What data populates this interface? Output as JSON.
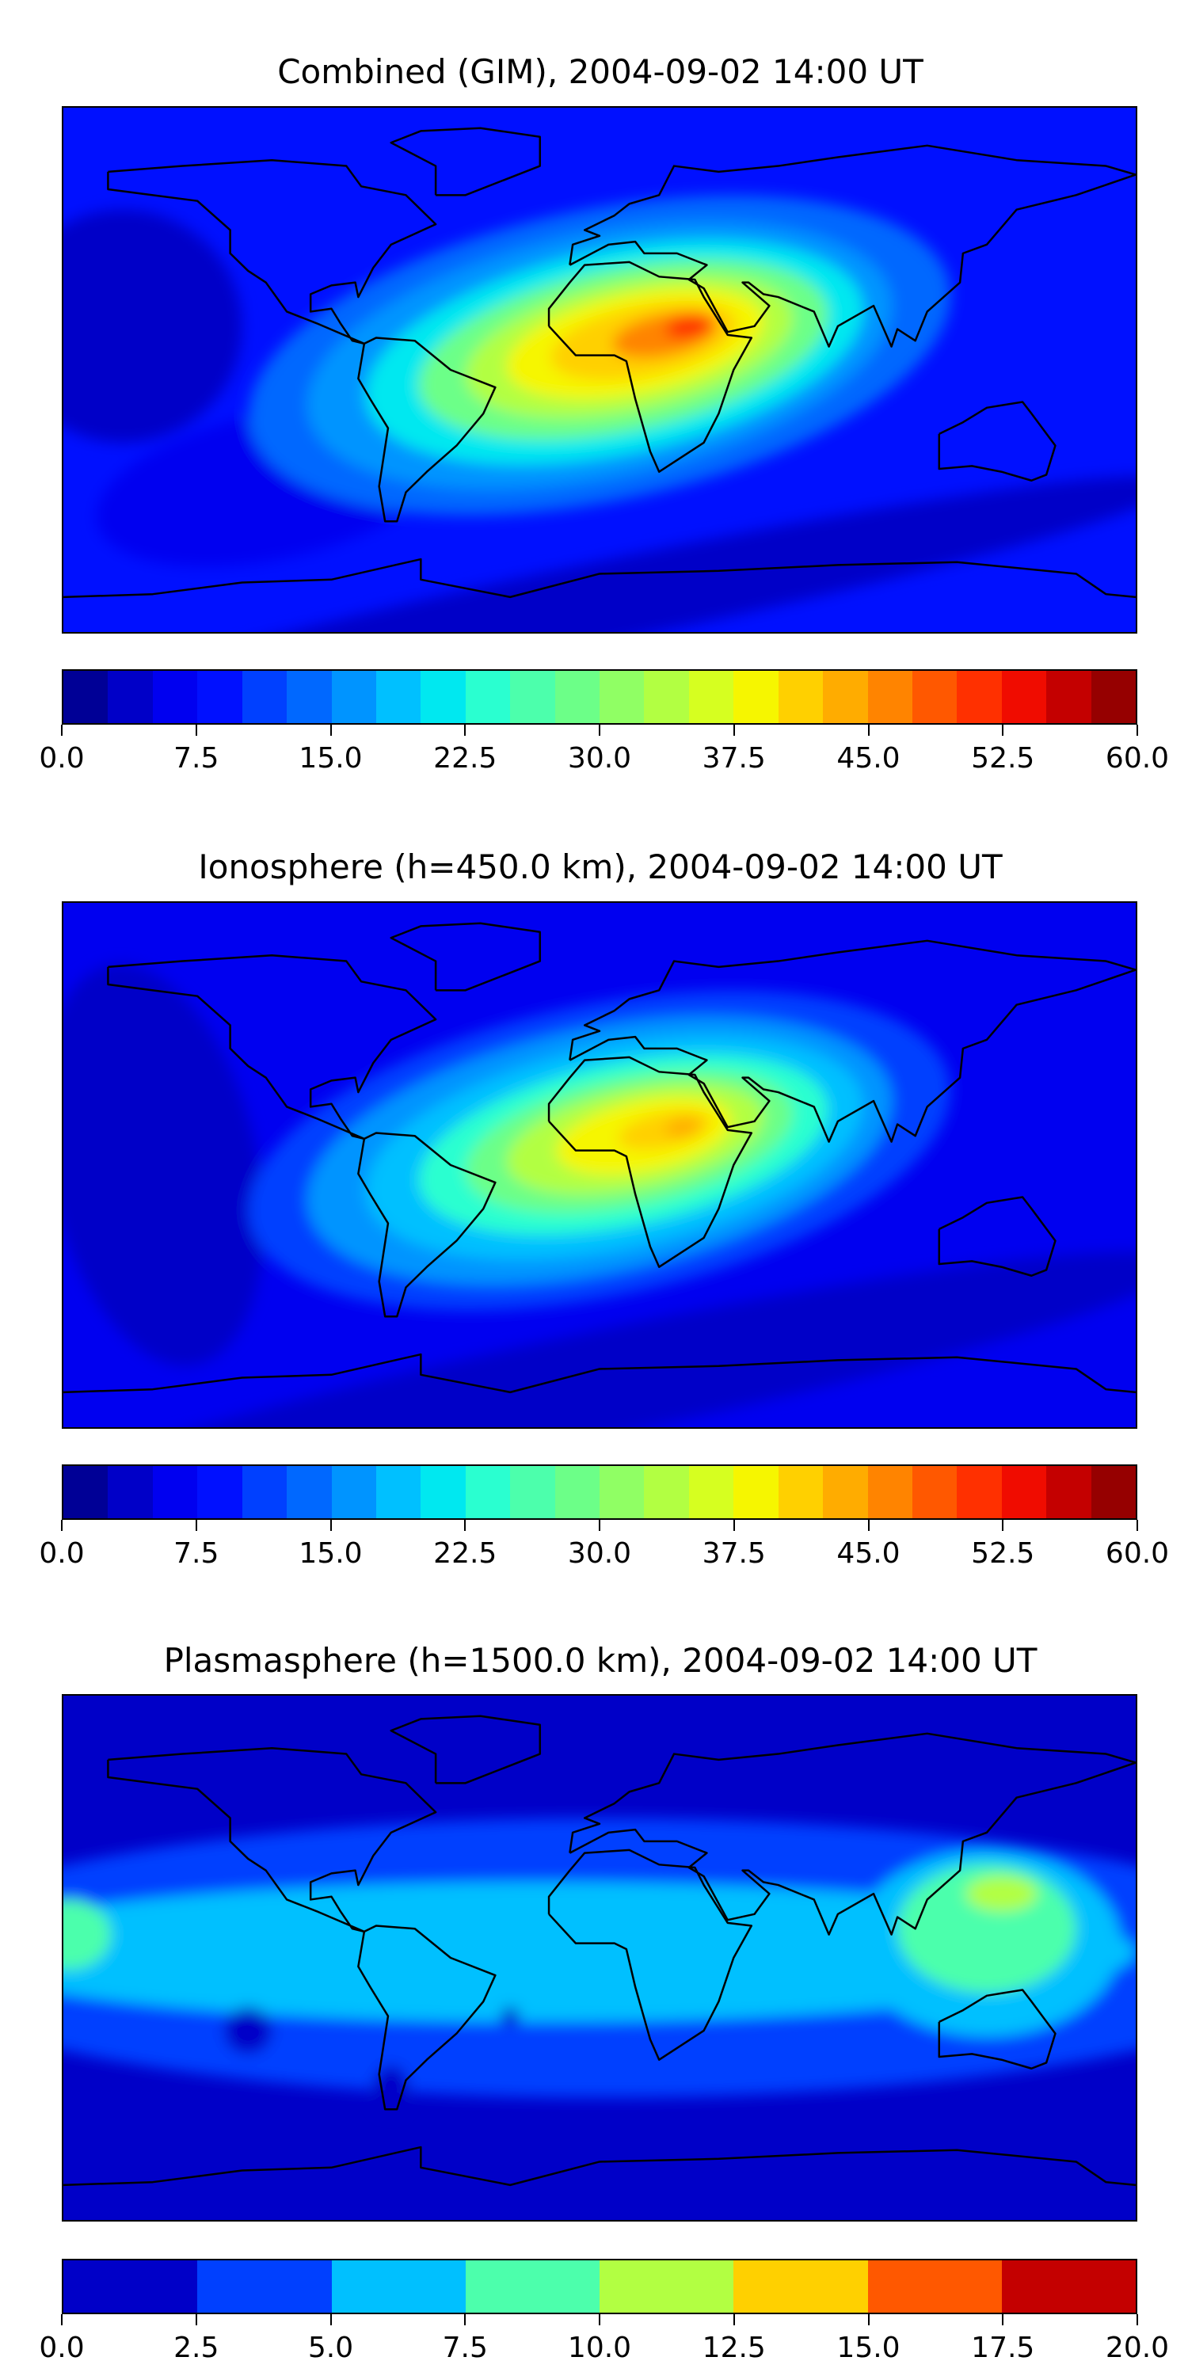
{
  "chart_data": [
    {
      "type": "heatmap",
      "title": "Combined (GIM), 2004-09-02 14:00 UT",
      "projection": "equirectangular",
      "lon_range": [
        -180,
        180
      ],
      "lat_range": [
        -90,
        90
      ],
      "levels": [
        0,
        2.5,
        5,
        7.5,
        10,
        12.5,
        15,
        17.5,
        20,
        22.5,
        25,
        27.5,
        30,
        32.5,
        35,
        37.5,
        40,
        42.5,
        45,
        47.5,
        50,
        52.5,
        55,
        57.5,
        60
      ],
      "colors": [
        "#000096",
        "#0000c8",
        "#0000f0",
        "#0010ff",
        "#0040ff",
        "#0068ff",
        "#0094ff",
        "#00c0ff",
        "#00e8f0",
        "#2affd0",
        "#4cffac",
        "#6cff88",
        "#90ff64",
        "#b2ff42",
        "#d6ff20",
        "#f6f600",
        "#ffd000",
        "#ffac00",
        "#ff8400",
        "#ff5800",
        "#ff3000",
        "#f00c00",
        "#c40000",
        "#960000"
      ],
      "tick_labels": [
        "0.0",
        "7.5",
        "15.0",
        "22.5",
        "30.0",
        "37.5",
        "45.0",
        "52.5",
        "60.0"
      ],
      "background_value": 8,
      "features": [
        {
          "lon": -160,
          "lat": 15,
          "rlon": 40,
          "rlat": 40,
          "value": 4
        },
        {
          "lon": -110,
          "lat": -40,
          "rlon": 60,
          "rlat": 25,
          "value": 5
        },
        {
          "lon": 0,
          "lat": -80,
          "rlon": 200,
          "rlat": 14,
          "value": 4
        },
        {
          "lon": 0,
          "lat": 5,
          "rlon": 120,
          "rlat": 50,
          "value": 13
        },
        {
          "lon": 0,
          "lat": 5,
          "rlon": 100,
          "rlat": 42,
          "value": 17
        },
        {
          "lon": 5,
          "lat": 6,
          "rlon": 85,
          "rlat": 35,
          "value": 22
        },
        {
          "lon": 8,
          "lat": 7,
          "rlon": 70,
          "rlat": 28,
          "value": 28
        },
        {
          "lon": 10,
          "lat": 8,
          "rlon": 56,
          "rlat": 22,
          "value": 33
        },
        {
          "lon": 12,
          "lat": 9,
          "rlon": 44,
          "rlat": 17,
          "value": 38
        },
        {
          "lon": 15,
          "lat": 10,
          "rlon": 32,
          "rlat": 12,
          "value": 42
        },
        {
          "lon": 22,
          "lat": 12,
          "rlon": 18,
          "rlat": 7,
          "value": 47
        },
        {
          "lon": 30,
          "lat": 15,
          "rlon": 8,
          "rlat": 4,
          "value": 51
        }
      ]
    },
    {
      "type": "heatmap",
      "title": "Ionosphere  (h=450.0 km), 2004-09-02 14:00 UT",
      "projection": "equirectangular",
      "lon_range": [
        -180,
        180
      ],
      "lat_range": [
        -90,
        90
      ],
      "levels": [
        0,
        2.5,
        5,
        7.5,
        10,
        12.5,
        15,
        17.5,
        20,
        22.5,
        25,
        27.5,
        30,
        32.5,
        35,
        37.5,
        40,
        42.5,
        45,
        47.5,
        50,
        52.5,
        55,
        57.5,
        60
      ],
      "colors": [
        "#000096",
        "#0000c8",
        "#0000f0",
        "#0010ff",
        "#0040ff",
        "#0068ff",
        "#0094ff",
        "#00c0ff",
        "#00e8f0",
        "#2affd0",
        "#4cffac",
        "#6cff88",
        "#90ff64",
        "#b2ff42",
        "#d6ff20",
        "#f6f600",
        "#ffd000",
        "#ffac00",
        "#ff8400",
        "#ff5800",
        "#ff3000",
        "#f00c00",
        "#c40000",
        "#960000"
      ],
      "tick_labels": [
        "0.0",
        "7.5",
        "15.0",
        "22.5",
        "30.0",
        "37.5",
        "45.0",
        "52.5",
        "60.0"
      ],
      "background_value": 6,
      "features": [
        {
          "lon": -150,
          "lat": 0,
          "rlon": 35,
          "rlat": 70,
          "value": 3
        },
        {
          "lon": 0,
          "lat": -75,
          "rlon": 200,
          "rlat": 18,
          "value": 3
        },
        {
          "lon": 0,
          "lat": 5,
          "rlon": 120,
          "rlat": 50,
          "value": 11
        },
        {
          "lon": 0,
          "lat": 5,
          "rlon": 100,
          "rlat": 42,
          "value": 15
        },
        {
          "lon": 5,
          "lat": 6,
          "rlon": 85,
          "rlat": 35,
          "value": 19
        },
        {
          "lon": 8,
          "lat": 7,
          "rlon": 70,
          "rlat": 28,
          "value": 24
        },
        {
          "lon": 10,
          "lat": 8,
          "rlon": 56,
          "rlat": 22,
          "value": 29
        },
        {
          "lon": 12,
          "lat": 9,
          "rlon": 44,
          "rlat": 17,
          "value": 34
        },
        {
          "lon": 15,
          "lat": 10,
          "rlon": 30,
          "rlat": 12,
          "value": 38
        },
        {
          "lon": 22,
          "lat": 12,
          "rlon": 16,
          "rlat": 6,
          "value": 41
        },
        {
          "lon": 28,
          "lat": 13,
          "rlon": 6,
          "rlat": 3,
          "value": 44
        }
      ]
    },
    {
      "type": "heatmap",
      "title": "Plasmasphere (h=1500.0 km), 2004-09-02 14:00 UT",
      "projection": "equirectangular",
      "lon_range": [
        -180,
        180
      ],
      "lat_range": [
        -90,
        90
      ],
      "levels": [
        0,
        2.5,
        5,
        7.5,
        10,
        12.5,
        15,
        17.5,
        20
      ],
      "colors": [
        "#0000c8",
        "#0040ff",
        "#00c0ff",
        "#4cffac",
        "#b2ff42",
        "#ffd000",
        "#ff5800",
        "#c40000"
      ],
      "tick_labels": [
        "0.0",
        "2.5",
        "5.0",
        "7.5",
        "10.0",
        "12.5",
        "15.0",
        "17.5",
        "20.0"
      ],
      "background_value": 1,
      "features": [
        {
          "lon": 0,
          "lat": 0,
          "rlon": 240,
          "rlat": 48,
          "value": 3
        },
        {
          "lon": -20,
          "lat": 2,
          "rlon": 200,
          "rlat": 24,
          "value": 6
        },
        {
          "lon": 130,
          "lat": 5,
          "rlon": 45,
          "rlat": 32,
          "value": 6
        },
        {
          "lon": 130,
          "lat": 10,
          "rlon": 30,
          "rlat": 22,
          "value": 8
        },
        {
          "lon": -178,
          "lat": 8,
          "rlon": 14,
          "rlat": 12,
          "value": 8
        },
        {
          "lon": 135,
          "lat": 22,
          "rlon": 12,
          "rlat": 6,
          "value": 10
        },
        {
          "lon": -118,
          "lat": -25,
          "rlon": 8,
          "rlat": 8,
          "value": 1
        },
        {
          "lon": -70,
          "lat": -45,
          "rlon": 6,
          "rlat": 8,
          "value": 1
        },
        {
          "lon": -30,
          "lat": -20,
          "rlon": 3,
          "rlat": 3,
          "value": 1
        }
      ]
    }
  ]
}
